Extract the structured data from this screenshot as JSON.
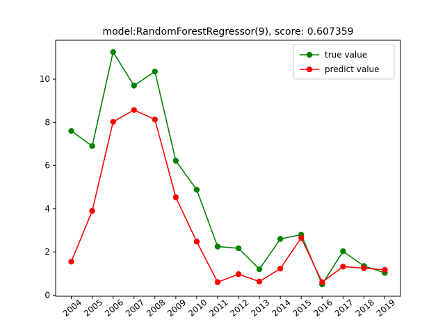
{
  "chart_data": {
    "type": "line",
    "title": "model:RandomForestRegressor(9), score: 0.607359",
    "xlabel": "",
    "ylabel": "",
    "categories": [
      "2004",
      "2005",
      "2006",
      "2007",
      "2008",
      "2009",
      "2010",
      "2011",
      "2012",
      "2013",
      "2014",
      "2015",
      "2016",
      "2017",
      "2018",
      "2019"
    ],
    "ylim": [
      -0.05,
      11.8
    ],
    "yticks": [
      0,
      2,
      4,
      6,
      8,
      10
    ],
    "grid": false,
    "legend_position": "top-right",
    "series": [
      {
        "name": "true value",
        "color": "#008000",
        "values": [
          7.6,
          6.9,
          11.25,
          9.7,
          10.35,
          6.22,
          4.88,
          2.25,
          2.17,
          1.2,
          2.6,
          2.8,
          0.5,
          2.03,
          1.35,
          1.03
        ]
      },
      {
        "name": "predict value",
        "color": "#ff0000",
        "values": [
          1.55,
          3.9,
          8.02,
          8.57,
          8.13,
          4.53,
          2.48,
          0.6,
          0.97,
          0.63,
          1.23,
          2.65,
          0.6,
          1.32,
          1.25,
          1.17
        ]
      }
    ]
  }
}
